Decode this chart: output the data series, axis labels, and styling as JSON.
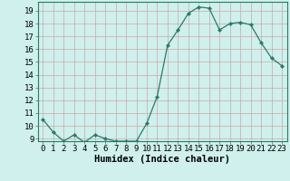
{
  "x": [
    0,
    1,
    2,
    3,
    4,
    5,
    6,
    7,
    8,
    9,
    10,
    11,
    12,
    13,
    14,
    15,
    16,
    17,
    18,
    19,
    20,
    21,
    22,
    23
  ],
  "y": [
    10.5,
    9.5,
    8.8,
    9.3,
    8.7,
    9.3,
    9.0,
    8.8,
    8.8,
    8.8,
    10.2,
    12.3,
    16.3,
    17.5,
    18.8,
    19.3,
    19.2,
    17.5,
    18.0,
    18.1,
    17.9,
    16.5,
    15.3,
    14.7
  ],
  "line_color": "#2a7a6a",
  "marker": "D",
  "marker_size": 2.2,
  "bg_color": "#cff0ec",
  "grid_color_major": "#c8a8a8",
  "grid_color_minor": "#ddc8c8",
  "xlabel": "Humidex (Indice chaleur)",
  "ylim": [
    8.8,
    19.7
  ],
  "xlim": [
    -0.5,
    23.5
  ],
  "yticks": [
    9,
    10,
    11,
    12,
    13,
    14,
    15,
    16,
    17,
    18,
    19
  ],
  "xticks": [
    0,
    1,
    2,
    3,
    4,
    5,
    6,
    7,
    8,
    9,
    10,
    11,
    12,
    13,
    14,
    15,
    16,
    17,
    18,
    19,
    20,
    21,
    22,
    23
  ],
  "tick_fontsize": 6.5,
  "label_fontsize": 7.5,
  "spine_color": "#2a7a6a"
}
